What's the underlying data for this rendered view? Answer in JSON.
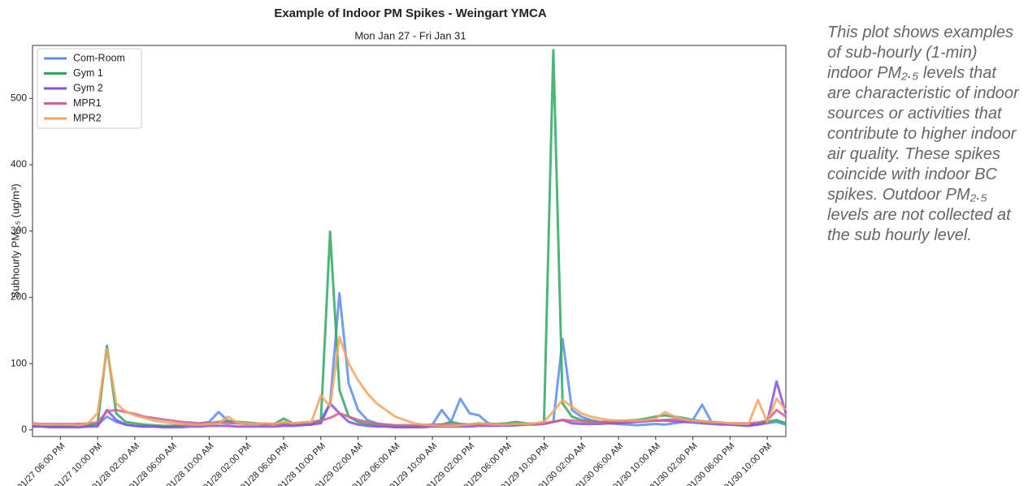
{
  "chart_data": {
    "type": "line",
    "title": "Example of Indoor PM Spikes - Weingart YMCA",
    "subtitle": "Mon Jan 27 - Fri Jan 31",
    "y_label": "Subhourly PM₂.₅ (ug/m³)",
    "x": [
      "01/27 03:00 PM",
      "01/27 04:00 PM",
      "01/27 05:00 PM",
      "01/27 06:00 PM",
      "01/27 07:00 PM",
      "01/27 08:00 PM",
      "01/27 09:00 PM",
      "01/27 10:00 PM",
      "01/27 11:00 PM",
      "01/28 12:00 AM",
      "01/28 01:00 AM",
      "01/28 02:00 AM",
      "01/28 03:00 AM",
      "01/28 04:00 AM",
      "01/28 05:00 AM",
      "01/28 06:00 AM",
      "01/28 07:00 AM",
      "01/28 08:00 AM",
      "01/28 09:00 AM",
      "01/28 10:00 AM",
      "01/28 11:00 AM",
      "01/28 12:00 PM",
      "01/28 01:00 PM",
      "01/28 02:00 PM",
      "01/28 03:00 PM",
      "01/28 04:00 PM",
      "01/28 05:00 PM",
      "01/28 06:00 PM",
      "01/28 07:00 PM",
      "01/28 08:00 PM",
      "01/28 09:00 PM",
      "01/28 10:00 PM",
      "01/28 11:00 PM",
      "01/29 12:00 AM",
      "01/29 01:00 AM",
      "01/29 02:00 AM",
      "01/29 03:00 AM",
      "01/29 04:00 AM",
      "01/29 05:00 AM",
      "01/29 06:00 AM",
      "01/29 07:00 AM",
      "01/29 08:00 AM",
      "01/29 09:00 AM",
      "01/29 10:00 AM",
      "01/29 11:00 AM",
      "01/29 12:00 PM",
      "01/29 01:00 PM",
      "01/29 02:00 PM",
      "01/29 03:00 PM",
      "01/29 04:00 PM",
      "01/29 05:00 PM",
      "01/29 06:00 PM",
      "01/29 07:00 PM",
      "01/29 08:00 PM",
      "01/29 09:00 PM",
      "01/29 10:00 PM",
      "01/29 11:00 PM",
      "01/30 12:00 AM",
      "01/30 01:00 AM",
      "01/30 02:00 AM",
      "01/30 03:00 AM",
      "01/30 04:00 AM",
      "01/30 05:00 AM",
      "01/30 06:00 AM",
      "01/30 07:00 AM",
      "01/30 08:00 AM",
      "01/30 09:00 AM",
      "01/30 10:00 AM",
      "01/30 11:00 AM",
      "01/30 12:00 PM",
      "01/30 01:00 PM",
      "01/30 02:00 PM",
      "01/30 03:00 PM",
      "01/30 04:00 PM",
      "01/30 05:00 PM",
      "01/30 06:00 PM",
      "01/30 07:00 PM",
      "01/30 08:00 PM",
      "01/30 09:00 PM",
      "01/30 10:00 PM",
      "01/30 11:00 PM",
      "01/31 12:00 AM"
    ],
    "xticks": [
      "01/27 06:00 PM",
      "01/27 10:00 PM",
      "01/28 02:00 AM",
      "01/28 06:00 AM",
      "01/28 10:00 AM",
      "01/28 02:00 PM",
      "01/28 06:00 PM",
      "01/28 10:00 PM",
      "01/29 02:00 AM",
      "01/29 06:00 AM",
      "01/29 10:00 AM",
      "01/29 02:00 PM",
      "01/29 06:00 PM",
      "01/29 10:00 PM",
      "01/30 02:00 AM",
      "01/30 06:00 AM",
      "01/30 10:00 AM",
      "01/30 02:00 PM",
      "01/30 06:00 PM",
      "01/30 10:00 PM"
    ],
    "ylim": [
      -10,
      580
    ],
    "yticks": [
      0,
      100,
      200,
      300,
      400,
      500
    ],
    "legend": "upper left",
    "series": [
      {
        "name": "Com-Room",
        "color": "#5a8ded",
        "values": [
          6,
          5,
          5,
          5,
          6,
          5,
          6,
          8,
          20,
          12,
          8,
          6,
          5,
          5,
          5,
          5,
          6,
          8,
          10,
          12,
          27,
          14,
          10,
          11,
          9,
          8,
          9,
          8,
          7,
          9,
          8,
          15,
          40,
          206,
          70,
          30,
          15,
          10,
          8,
          6,
          5,
          5,
          6,
          8,
          30,
          12,
          47,
          25,
          22,
          10,
          8,
          6,
          7,
          8,
          9,
          10,
          12,
          137,
          30,
          20,
          15,
          12,
          10,
          9,
          8,
          7,
          8,
          9,
          8,
          10,
          12,
          15,
          38,
          12,
          10,
          8,
          7,
          6,
          8,
          10,
          12,
          8
        ]
      },
      {
        "name": "Gym 1",
        "color": "#2fa862",
        "values": [
          8,
          7,
          7,
          6,
          6,
          7,
          8,
          9,
          127,
          25,
          12,
          10,
          8,
          7,
          6,
          6,
          7,
          8,
          9,
          10,
          12,
          13,
          12,
          11,
          10,
          9,
          9,
          17,
          10,
          9,
          10,
          12,
          299,
          60,
          20,
          12,
          9,
          7,
          6,
          5,
          5,
          5,
          6,
          7,
          8,
          12,
          9,
          8,
          10,
          9,
          9,
          10,
          12,
          10,
          9,
          10,
          573,
          40,
          20,
          15,
          13,
          12,
          12,
          13,
          14,
          15,
          17,
          20,
          22,
          20,
          18,
          15,
          13,
          12,
          10,
          9,
          8,
          8,
          10,
          12,
          15,
          10
        ]
      },
      {
        "name": "Gym 2",
        "color": "#8552dd",
        "values": [
          5,
          5,
          4,
          4,
          4,
          4,
          5,
          5,
          30,
          15,
          8,
          6,
          5,
          5,
          4,
          4,
          4,
          5,
          5,
          6,
          6,
          6,
          5,
          5,
          5,
          5,
          5,
          6,
          6,
          7,
          8,
          10,
          40,
          25,
          12,
          8,
          6,
          5,
          5,
          4,
          4,
          4,
          4,
          5,
          5,
          5,
          5,
          5,
          6,
          6,
          6,
          7,
          7,
          8,
          8,
          9,
          12,
          15,
          10,
          9,
          9,
          9,
          10,
          10,
          11,
          12,
          13,
          14,
          14,
          13,
          12,
          11,
          10,
          9,
          8,
          8,
          7,
          7,
          8,
          12,
          73,
          25
        ]
      },
      {
        "name": "MPR1",
        "color": "#d2608f",
        "values": [
          10,
          9,
          9,
          9,
          9,
          9,
          10,
          11,
          28,
          30,
          27,
          24,
          20,
          18,
          16,
          14,
          12,
          11,
          10,
          10,
          11,
          10,
          10,
          9,
          9,
          9,
          9,
          10,
          10,
          11,
          12,
          14,
          18,
          25,
          20,
          15,
          12,
          9,
          8,
          7,
          7,
          7,
          7,
          8,
          8,
          8,
          8,
          8,
          8,
          8,
          8,
          8,
          9,
          9,
          9,
          10,
          12,
          15,
          14,
          13,
          12,
          12,
          12,
          13,
          13,
          13,
          14,
          14,
          15,
          16,
          15,
          14,
          13,
          12,
          11,
          10,
          10,
          10,
          11,
          14,
          30,
          20
        ]
      },
      {
        "name": "MPR2",
        "color": "#f4a460",
        "values": [
          9,
          8,
          8,
          8,
          8,
          7,
          10,
          25,
          122,
          40,
          28,
          22,
          18,
          14,
          12,
          10,
          9,
          8,
          8,
          9,
          10,
          20,
          11,
          10,
          9,
          10,
          9,
          12,
          10,
          11,
          12,
          52,
          35,
          140,
          100,
          75,
          55,
          40,
          30,
          20,
          15,
          10,
          8,
          7,
          6,
          6,
          7,
          8,
          10,
          9,
          8,
          8,
          9,
          9,
          10,
          12,
          28,
          45,
          35,
          25,
          20,
          17,
          15,
          14,
          14,
          14,
          15,
          17,
          27,
          20,
          16,
          14,
          13,
          12,
          11,
          10,
          9,
          9,
          45,
          12,
          47,
          30
        ]
      }
    ]
  },
  "note": "This plot shows examples of sub-hourly (1-min) indoor PM₂.₅ levels that are characteristic of indoor sources or activities that contribute to higher indoor air quality. These spikes coincide with indoor BC spikes. Outdoor PM₂.₅ levels are not collected at the sub hourly level."
}
